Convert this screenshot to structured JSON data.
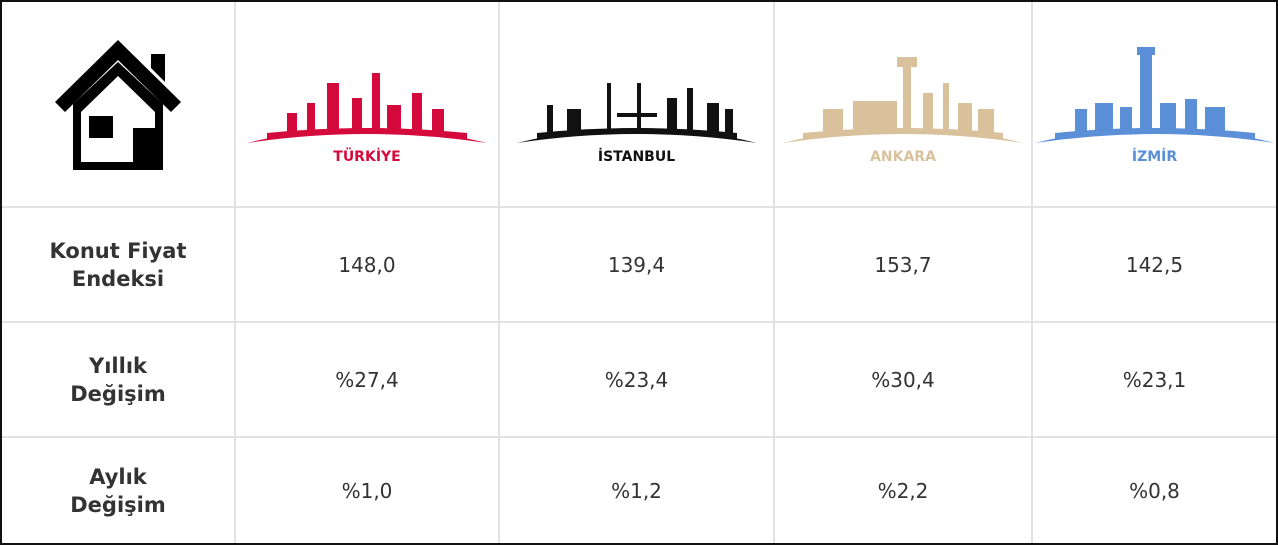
{
  "header": {
    "cities": [
      {
        "name": "TÜRKİYE",
        "color": "#d50a3c"
      },
      {
        "name": "İSTANBUL",
        "color": "#111111"
      },
      {
        "name": "ANKARA",
        "color": "#d8c19b"
      },
      {
        "name": "İZMİR",
        "color": "#5b8fd8"
      }
    ]
  },
  "table": {
    "rows": [
      {
        "label": [
          "Konut Fiyat",
          "Endeksi"
        ],
        "cells": [
          "148,0",
          "139,4",
          "153,7",
          "142,5"
        ]
      },
      {
        "label": [
          "Yıllık",
          "Değişim"
        ],
        "cells": [
          "%27,4",
          "%23,4",
          "%30,4",
          "%23,1"
        ]
      },
      {
        "label": [
          "Aylık",
          "Değişim"
        ],
        "cells": [
          "%1,0",
          "%1,2",
          "%2,2",
          "%0,8"
        ]
      }
    ]
  }
}
